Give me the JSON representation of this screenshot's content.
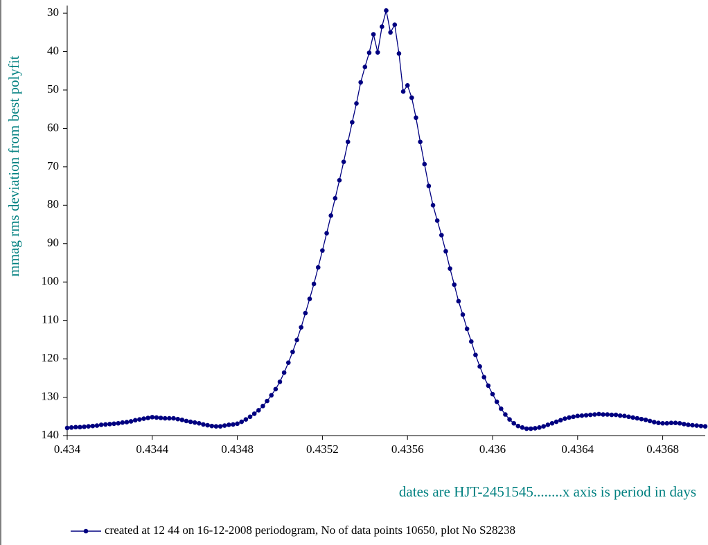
{
  "chart_data": {
    "type": "line",
    "y_label": "mmag rms deviation from best polyfit",
    "x_label": "dates are HJT-2451545........x axis is period in days",
    "label_color": "#008080",
    "xlim": [
      0.434,
      0.437
    ],
    "xticks": [
      0.434,
      0.4344,
      0.4348,
      0.4352,
      0.4356,
      0.436,
      0.4364,
      0.4368
    ],
    "ylim": [
      28,
      140
    ],
    "yticks": [
      30,
      40,
      50,
      60,
      70,
      80,
      90,
      100,
      110,
      120,
      130,
      140
    ],
    "y_inverted": true,
    "x": [
      0.434,
      0.43402,
      0.43404,
      0.43406,
      0.43408,
      0.4341,
      0.43412,
      0.43414,
      0.43416,
      0.43418,
      0.4342,
      0.43422,
      0.43424,
      0.43426,
      0.43428,
      0.4343,
      0.43432,
      0.43434,
      0.43436,
      0.43438,
      0.4344,
      0.43442,
      0.43444,
      0.43446,
      0.43448,
      0.4345,
      0.43452,
      0.43454,
      0.43456,
      0.43458,
      0.4346,
      0.43462,
      0.43464,
      0.43466,
      0.43468,
      0.4347,
      0.43472,
      0.43474,
      0.43476,
      0.43478,
      0.4348,
      0.43482,
      0.43484,
      0.43486,
      0.43488,
      0.4349,
      0.43492,
      0.43494,
      0.43496,
      0.43498,
      0.435,
      0.43502,
      0.43504,
      0.43506,
      0.43508,
      0.4351,
      0.43512,
      0.43514,
      0.43516,
      0.43518,
      0.4352,
      0.43522,
      0.43524,
      0.43526,
      0.43528,
      0.4353,
      0.43532,
      0.43534,
      0.43536,
      0.43538,
      0.4354,
      0.43542,
      0.43544,
      0.43546,
      0.43548,
      0.4355,
      0.43552,
      0.43554,
      0.43556,
      0.43558,
      0.4356,
      0.43562,
      0.43564,
      0.43566,
      0.43568,
      0.4357,
      0.43572,
      0.43574,
      0.43576,
      0.43578,
      0.4358,
      0.43582,
      0.43584,
      0.43586,
      0.43588,
      0.4359,
      0.43592,
      0.43594,
      0.43596,
      0.43598,
      0.436,
      0.43602,
      0.43604,
      0.43606,
      0.43608,
      0.4361,
      0.43612,
      0.43614,
      0.43616,
      0.43618,
      0.4362,
      0.43622,
      0.43624,
      0.43626,
      0.43628,
      0.4363,
      0.43632,
      0.43634,
      0.43636,
      0.43638,
      0.4364,
      0.43642,
      0.43644,
      0.43646,
      0.43648,
      0.4365,
      0.43652,
      0.43654,
      0.43656,
      0.43658,
      0.4366,
      0.43662,
      0.43664,
      0.43666,
      0.43668,
      0.4367,
      0.43672,
      0.43674,
      0.43676,
      0.43678,
      0.4368,
      0.43682,
      0.43684,
      0.43686,
      0.43688,
      0.4369,
      0.43692,
      0.43694,
      0.43696,
      0.43698,
      0.437
    ],
    "series": [
      {
        "name": "created at 12 44 on 16-12-2008 periodogram, No of data points 10650,  plot No S28238",
        "color": "#000080",
        "values": [
          138,
          137.9,
          137.8,
          137.8,
          137.7,
          137.6,
          137.5,
          137.4,
          137.2,
          137.1,
          137,
          136.9,
          136.8,
          136.6,
          136.5,
          136.3,
          136,
          135.8,
          135.6,
          135.4,
          135.2,
          135.3,
          135.4,
          135.5,
          135.5,
          135.5,
          135.7,
          135.9,
          136.2,
          136.4,
          136.6,
          136.8,
          137.1,
          137.3,
          137.5,
          137.6,
          137.6,
          137.4,
          137.2,
          137.1,
          136.9,
          136.4,
          135.8,
          135.1,
          134.3,
          133.4,
          132.3,
          131,
          129.5,
          127.9,
          126,
          123.6,
          121,
          118.2,
          115.1,
          111.8,
          108.1,
          104.4,
          100.5,
          96.2,
          91.8,
          87.3,
          82.7,
          78.2,
          73.5,
          68.7,
          63.5,
          58.4,
          53.5,
          48,
          44,
          40.3,
          35.5,
          40.2,
          33.5,
          29.3,
          35,
          33,
          40.5,
          50.4,
          48.8,
          52,
          57.2,
          63.5,
          69.3,
          75,
          80,
          84,
          87.8,
          92,
          96.5,
          100.7,
          105,
          108.5,
          112.2,
          115.5,
          119,
          122,
          124.8,
          127,
          129.2,
          131.2,
          133,
          134.5,
          135.8,
          136.8,
          137.5,
          137.9,
          138.2,
          138.2,
          138.1,
          137.9,
          137.6,
          137.2,
          136.8,
          136.4,
          136,
          135.6,
          135.3,
          135.1,
          134.9,
          134.8,
          134.7,
          134.6,
          134.5,
          134.4,
          134.5,
          134.5,
          134.6,
          134.6,
          134.8,
          134.9,
          135.1,
          135.3,
          135.5,
          135.7,
          135.9,
          136.2,
          136.5,
          136.7,
          136.8,
          136.8,
          136.7,
          136.7,
          136.8,
          137,
          137.2,
          137.3,
          137.4,
          137.5,
          137.6
        ]
      }
    ]
  }
}
